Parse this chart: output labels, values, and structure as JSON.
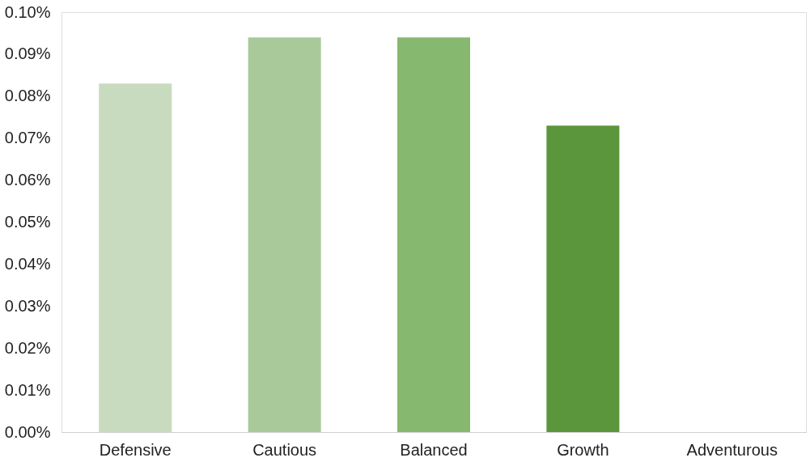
{
  "chart_data": {
    "type": "bar",
    "categories": [
      "Defensive",
      "Cautious",
      "Balanced",
      "Growth",
      "Adventurous"
    ],
    "values": [
      0.083,
      0.094,
      0.094,
      0.073,
      0
    ],
    "colors": [
      "#c8dbbf",
      "#a9c99b",
      "#87b870",
      "#5b963c",
      "#3f7a2a"
    ],
    "ylim": [
      0,
      0.1
    ],
    "yticks": [
      {
        "value": 0,
        "label": "0.00%"
      },
      {
        "value": 0.01,
        "label": "0.01%"
      },
      {
        "value": 0.02,
        "label": "0.02%"
      },
      {
        "value": 0.03,
        "label": "0.03%"
      },
      {
        "value": 0.04,
        "label": "0.04%"
      },
      {
        "value": 0.05,
        "label": "0.05%"
      },
      {
        "value": 0.06,
        "label": "0.06%"
      },
      {
        "value": 0.07,
        "label": "0.07%"
      },
      {
        "value": 0.08,
        "label": "0.08%"
      },
      {
        "value": 0.09,
        "label": "0.09%"
      },
      {
        "value": 0.1,
        "label": "0.10%"
      }
    ],
    "grid": false,
    "legend": false
  }
}
